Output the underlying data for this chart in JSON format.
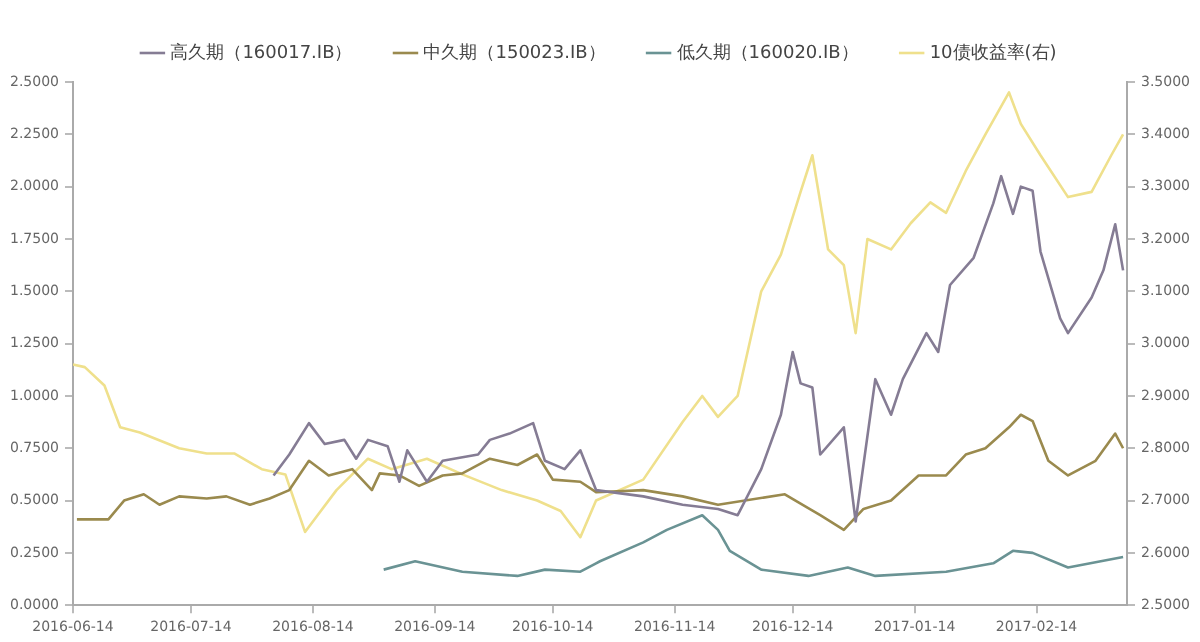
{
  "chart_data": {
    "type": "line",
    "legend": "top",
    "marker": "none",
    "grid": false,
    "xlim": [
      "2016-06-14",
      "2017-03-09"
    ],
    "xticks": [
      "2016-06-14",
      "2016-07-14",
      "2016-08-14",
      "2016-09-14",
      "2016-10-14",
      "2016-11-14",
      "2016-12-14",
      "2017-01-14",
      "2017-02-14"
    ],
    "ylim": [
      0,
      2.5
    ],
    "yticks": [
      {
        "value": 0,
        "label": "0.0000"
      },
      {
        "value": 0.25,
        "label": "0.2500"
      },
      {
        "value": 0.5,
        "label": "0.5000"
      },
      {
        "value": 0.75,
        "label": "0.7500"
      },
      {
        "value": 1,
        "label": "1.0000"
      },
      {
        "value": 1.25,
        "label": "1.2500"
      },
      {
        "value": 1.5,
        "label": "1.5000"
      },
      {
        "value": 1.75,
        "label": "1.7500"
      },
      {
        "value": 2,
        "label": "2.0000"
      },
      {
        "value": 2.25,
        "label": "2.2500"
      },
      {
        "value": 2.5,
        "label": "2.5000"
      }
    ],
    "y2lim": [
      2.5,
      3.5
    ],
    "y2ticks": [
      {
        "value": 2.5,
        "label": "2.5000"
      },
      {
        "value": 2.6,
        "label": "2.6000"
      },
      {
        "value": 2.7,
        "label": "2.7000"
      },
      {
        "value": 2.8,
        "label": "2.8000"
      },
      {
        "value": 2.9,
        "label": "2.9000"
      },
      {
        "value": 3,
        "label": "3.0000"
      },
      {
        "value": 3.1,
        "label": "3.1000"
      },
      {
        "value": 3.2,
        "label": "3.2000"
      },
      {
        "value": 3.3,
        "label": "3.3000"
      },
      {
        "value": 3.4,
        "label": "3.4000"
      },
      {
        "value": 3.5,
        "label": "3.5000"
      }
    ],
    "series": [
      {
        "name": "高久期（160017.IB）",
        "color": "#857c94",
        "x": [
          "2016-08-04",
          "2016-08-08",
          "2016-08-13",
          "2016-08-17",
          "2016-08-22",
          "2016-08-25",
          "2016-08-28",
          "2016-09-02",
          "2016-09-05",
          "2016-09-07",
          "2016-09-12",
          "2016-09-16",
          "2016-09-25",
          "2016-09-28",
          "2016-10-03",
          "2016-10-09",
          "2016-10-12",
          "2016-10-17",
          "2016-10-21",
          "2016-10-25",
          "2016-11-06",
          "2016-11-16",
          "2016-11-25",
          "2016-11-30",
          "2016-12-06",
          "2016-12-11",
          "2016-12-14",
          "2016-12-16",
          "2016-12-19",
          "2016-12-21",
          "2016-12-27",
          "2016-12-30",
          "2017-01-04",
          "2017-01-08",
          "2017-01-11",
          "2017-01-17",
          "2017-01-20",
          "2017-01-23",
          "2017-01-29",
          "2017-02-03",
          "2017-02-05",
          "2017-02-08",
          "2017-02-10",
          "2017-02-13",
          "2017-02-15",
          "2017-02-20",
          "2017-02-22",
          "2017-02-28",
          "2017-03-03",
          "2017-03-06",
          "2017-03-08"
        ],
        "values": [
          0.62,
          0.72,
          0.87,
          0.77,
          0.79,
          0.7,
          0.79,
          0.76,
          0.59,
          0.74,
          0.59,
          0.69,
          0.72,
          0.79,
          0.82,
          0.87,
          0.69,
          0.65,
          0.74,
          0.55,
          0.52,
          0.48,
          0.46,
          0.43,
          0.65,
          0.91,
          1.21,
          1.06,
          1.04,
          0.72,
          0.85,
          0.4,
          1.08,
          0.91,
          1.08,
          1.3,
          1.21,
          1.53,
          1.66,
          1.92,
          2.05,
          1.87,
          2.0,
          1.98,
          1.69,
          1.37,
          1.3,
          1.47,
          1.6,
          1.82,
          1.6
        ]
      },
      {
        "name": "中久期（150023.IB）",
        "color": "#9a8a4e",
        "x": [
          "2016-06-15",
          "2016-06-23",
          "2016-06-27",
          "2016-07-02",
          "2016-07-06",
          "2016-07-11",
          "2016-07-18",
          "2016-07-23",
          "2016-07-29",
          "2016-08-03",
          "2016-08-08",
          "2016-08-13",
          "2016-08-18",
          "2016-08-24",
          "2016-08-29",
          "2016-08-31",
          "2016-09-05",
          "2016-09-10",
          "2016-09-16",
          "2016-09-21",
          "2016-09-28",
          "2016-10-05",
          "2016-10-10",
          "2016-10-14",
          "2016-10-21",
          "2016-10-25",
          "2016-11-06",
          "2016-11-16",
          "2016-11-25",
          "2016-12-12",
          "2016-12-21",
          "2016-12-27",
          "2017-01-01",
          "2017-01-08",
          "2017-01-15",
          "2017-01-22",
          "2017-01-27",
          "2017-02-01",
          "2017-02-07",
          "2017-02-10",
          "2017-02-13",
          "2017-02-17",
          "2017-02-22",
          "2017-03-01",
          "2017-03-06",
          "2017-03-08"
        ],
        "values": [
          0.41,
          0.41,
          0.5,
          0.53,
          0.48,
          0.52,
          0.51,
          0.52,
          0.48,
          0.51,
          0.55,
          0.69,
          0.62,
          0.65,
          0.55,
          0.63,
          0.62,
          0.57,
          0.62,
          0.63,
          0.7,
          0.67,
          0.72,
          0.6,
          0.59,
          0.54,
          0.55,
          0.52,
          0.48,
          0.53,
          0.43,
          0.36,
          0.46,
          0.5,
          0.62,
          0.62,
          0.72,
          0.75,
          0.85,
          0.91,
          0.88,
          0.69,
          0.62,
          0.69,
          0.82,
          0.75
        ]
      },
      {
        "name": "低久期（160020.IB）",
        "color": "#6a9394",
        "x": [
          "2016-09-01",
          "2016-09-09",
          "2016-09-21",
          "2016-10-05",
          "2016-10-12",
          "2016-10-21",
          "2016-10-25",
          "2016-10-26",
          "2016-11-06",
          "2016-11-12",
          "2016-11-21",
          "2016-11-25",
          "2016-11-28",
          "2016-12-06",
          "2016-12-18",
          "2016-12-28",
          "2017-01-04",
          "2017-01-22",
          "2017-02-03",
          "2017-02-08",
          "2017-02-13",
          "2017-02-22",
          "2017-03-08"
        ],
        "values": [
          0.17,
          0.21,
          0.16,
          0.14,
          0.17,
          0.16,
          0.2,
          0.21,
          0.3,
          0.36,
          0.43,
          0.36,
          0.26,
          0.17,
          0.14,
          0.18,
          0.14,
          0.16,
          0.2,
          0.26,
          0.25,
          0.18,
          0.23
        ]
      },
      {
        "name": "10债收益率(右)",
        "color": "#efe08c",
        "axis": "y2",
        "x": [
          "2016-06-14",
          "2016-06-17",
          "2016-06-22",
          "2016-06-26",
          "2016-07-01",
          "2016-07-11",
          "2016-07-18",
          "2016-07-25",
          "2016-08-01",
          "2016-08-07",
          "2016-08-12",
          "2016-08-15",
          "2016-08-20",
          "2016-08-28",
          "2016-09-03",
          "2016-09-12",
          "2016-09-21",
          "2016-10-01",
          "2016-10-10",
          "2016-10-16",
          "2016-10-21",
          "2016-10-25",
          "2016-11-06",
          "2016-11-16",
          "2016-11-21",
          "2016-11-25",
          "2016-11-30",
          "2016-12-06",
          "2016-12-11",
          "2016-12-16",
          "2016-12-19",
          "2016-12-23",
          "2016-12-27",
          "2016-12-30",
          "2017-01-02",
          "2017-01-08",
          "2017-01-13",
          "2017-01-18",
          "2017-01-22",
          "2017-01-27",
          "2017-02-01",
          "2017-02-07",
          "2017-02-10",
          "2017-02-15",
          "2017-02-22",
          "2017-02-28",
          "2017-03-05",
          "2017-03-08"
        ],
        "values": [
          2.96,
          2.955,
          2.92,
          2.84,
          2.83,
          2.8,
          2.79,
          2.79,
          2.76,
          2.75,
          2.64,
          2.67,
          2.72,
          2.78,
          2.76,
          2.78,
          2.75,
          2.72,
          2.7,
          2.68,
          2.63,
          2.7,
          2.74,
          2.85,
          2.9,
          2.86,
          2.9,
          3.1,
          3.17,
          3.29,
          3.36,
          3.18,
          3.15,
          3.02,
          3.2,
          3.18,
          3.23,
          3.27,
          3.25,
          3.33,
          3.4,
          3.48,
          3.42,
          3.36,
          3.28,
          3.29,
          3.36,
          3.4
        ]
      }
    ]
  }
}
